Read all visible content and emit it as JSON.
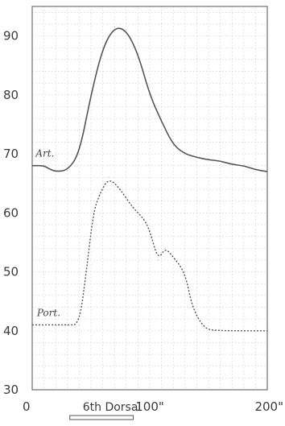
{
  "chart_data": {
    "type": "line",
    "title": "",
    "xlabel": "",
    "ylabel": "",
    "xlim": [
      0,
      200
    ],
    "ylim": [
      30,
      95
    ],
    "grid": true,
    "y_ticks": [
      "30",
      "40",
      "50",
      "60",
      "70",
      "80",
      "90"
    ],
    "x_ticks": [
      {
        "value": 0,
        "label": "0"
      },
      {
        "value": 100,
        "label": "100\""
      },
      {
        "value": 200,
        "label": "200\""
      }
    ],
    "stimulus": {
      "label": "6th Dorsal",
      "start": 32,
      "end": 86
    },
    "series": [
      {
        "name": "Art.",
        "style": "solid",
        "color": "#555555",
        "x": [
          0,
          10,
          14,
          20,
          30,
          40,
          50,
          60,
          70,
          80,
          90,
          100,
          110,
          120,
          130,
          140,
          150,
          160,
          170,
          180,
          190,
          200
        ],
        "y": [
          68,
          68,
          67.5,
          67,
          67.2,
          70,
          80,
          88,
          91.5,
          91,
          87,
          80,
          75.5,
          71.5,
          70,
          69.4,
          69,
          68.8,
          68.2,
          68,
          67.3,
          67
        ]
      },
      {
        "name": "Port.",
        "style": "dotted",
        "color": "#555555",
        "x": [
          0,
          30,
          40,
          46,
          52,
          57,
          65,
          75,
          85,
          95,
          100,
          107,
          113,
          118,
          130,
          136,
          146,
          155,
          200
        ],
        "y": [
          41,
          41,
          41,
          50,
          60,
          63,
          66,
          64,
          61,
          59,
          57,
          52,
          54,
          53,
          50,
          44,
          40.5,
          40,
          40
        ]
      }
    ]
  }
}
